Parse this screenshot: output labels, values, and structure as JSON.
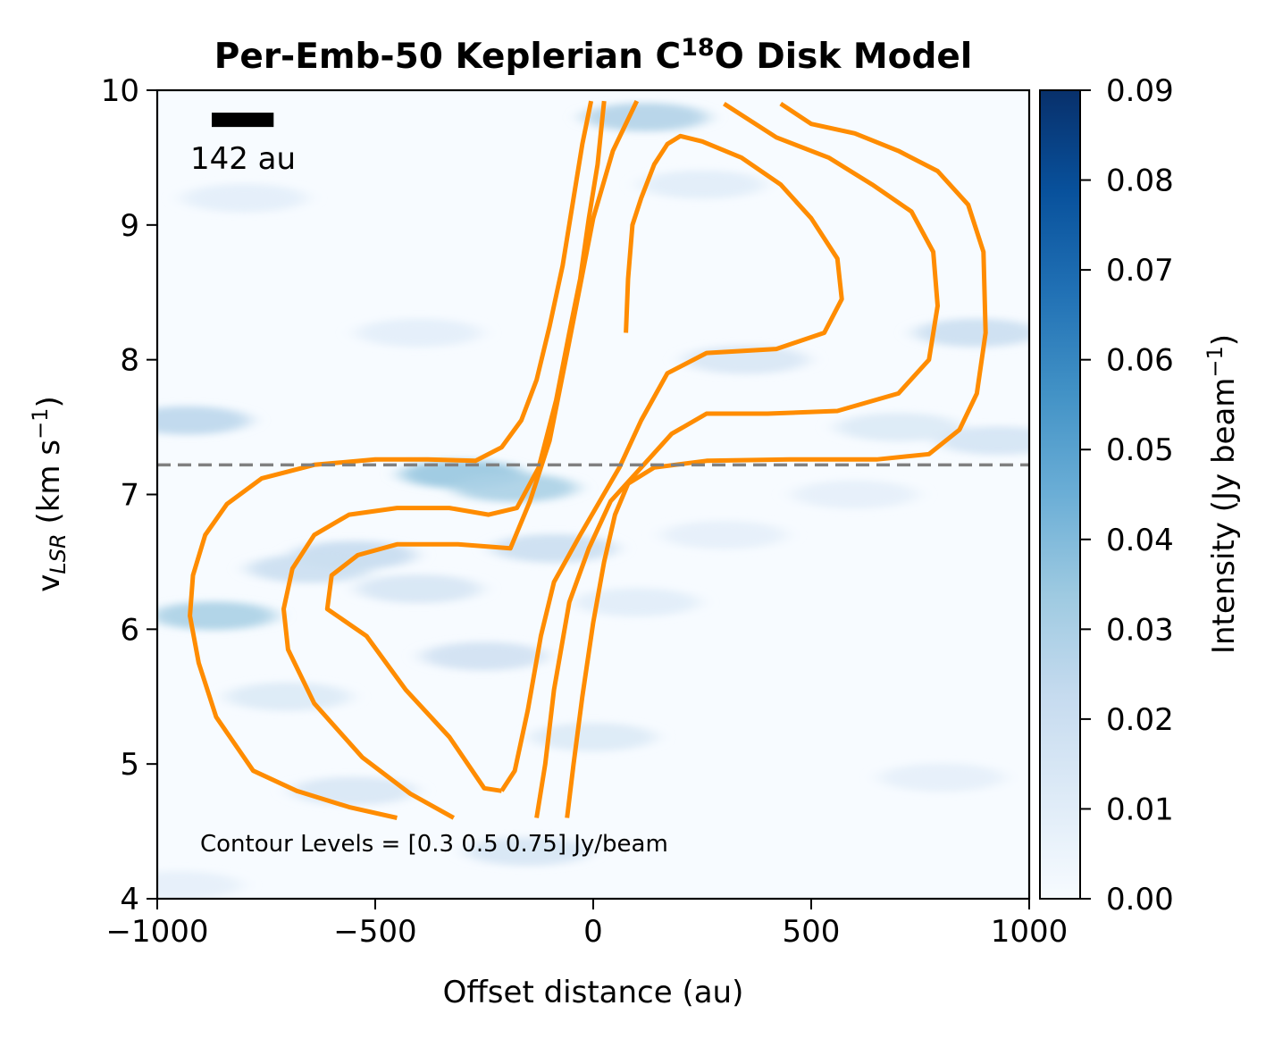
{
  "chart_data": {
    "type": "heatmap",
    "title": {
      "prefix": "Per-Emb-50 Keplerian C",
      "superscript": "18",
      "suffix": "O Disk Model"
    },
    "xlabel": "Offset distance (au)",
    "ylabel": {
      "main": "v",
      "subscript": "LSR",
      "units_open": " (km s",
      "units_sup": "−1",
      "units_close": ")"
    },
    "xlim": [
      -1000,
      1000
    ],
    "ylim": [
      4,
      10
    ],
    "x_ticks": [
      -1000,
      -500,
      0,
      500,
      1000
    ],
    "x_tick_labels": [
      "−1000",
      "−500",
      "0",
      "500",
      "1000"
    ],
    "y_ticks": [
      4,
      5,
      6,
      7,
      8,
      9,
      10
    ],
    "y_tick_labels": [
      "4",
      "5",
      "6",
      "7",
      "8",
      "9",
      "10"
    ],
    "colorbar": {
      "label_main": "Intensity (Jy beam",
      "label_sup": "−1",
      "label_close": ")",
      "range": [
        0,
        0.09
      ],
      "ticks": [
        0,
        0.01,
        0.02,
        0.03,
        0.04,
        0.05,
        0.06,
        0.07,
        0.08,
        0.09
      ],
      "tick_labels": [
        "0.00",
        "0.01",
        "0.02",
        "0.03",
        "0.04",
        "0.05",
        "0.06",
        "0.07",
        "0.08",
        "0.09"
      ],
      "colormap": [
        "#f7fbff",
        "#deebf7",
        "#c6dbef",
        "#9ecae1",
        "#6baed6",
        "#4292c6",
        "#2171b5",
        "#08519c",
        "#08306b"
      ]
    },
    "systemic_velocity": 7.22,
    "systemic_line_color": "#808080",
    "contour_color": "#ff8c00",
    "contour_levels_text": "Contour Levels = [0.3  0.5  0.75] Jy/beam",
    "scale_bar": {
      "label": "142 au",
      "x_range_au": [
        -875,
        -733
      ],
      "velocity": 9.78
    },
    "emission_peaks": [
      {
        "x": -300,
        "v": 7.15,
        "intensity": 0.035
      },
      {
        "x": -180,
        "v": 7.05,
        "intensity": 0.03
      },
      {
        "x": -870,
        "v": 6.1,
        "intensity": 0.03
      },
      {
        "x": -930,
        "v": 7.55,
        "intensity": 0.025
      },
      {
        "x": -550,
        "v": 6.55,
        "intensity": 0.022
      },
      {
        "x": -650,
        "v": 6.45,
        "intensity": 0.02
      },
      {
        "x": 120,
        "v": 9.8,
        "intensity": 0.028
      },
      {
        "x": -90,
        "v": 6.6,
        "intensity": 0.02
      },
      {
        "x": -250,
        "v": 5.8,
        "intensity": 0.018
      },
      {
        "x": -400,
        "v": 6.3,
        "intensity": 0.015
      },
      {
        "x": 350,
        "v": 8.0,
        "intensity": 0.014
      },
      {
        "x": 880,
        "v": 8.2,
        "intensity": 0.02
      },
      {
        "x": 930,
        "v": 7.4,
        "intensity": 0.016
      },
      {
        "x": 700,
        "v": 7.5,
        "intensity": 0.012
      },
      {
        "x": 600,
        "v": 7.0,
        "intensity": 0.008
      },
      {
        "x": -150,
        "v": 4.35,
        "intensity": 0.015
      },
      {
        "x": -550,
        "v": 4.8,
        "intensity": 0.014
      },
      {
        "x": -800,
        "v": 9.2,
        "intensity": 0.009
      },
      {
        "x": 250,
        "v": 9.3,
        "intensity": 0.01
      },
      {
        "x": -400,
        "v": 8.2,
        "intensity": 0.009
      },
      {
        "x": 100,
        "v": 6.2,
        "intensity": 0.01
      },
      {
        "x": 800,
        "v": 4.9,
        "intensity": 0.008
      },
      {
        "x": 0,
        "v": 5.2,
        "intensity": 0.012
      },
      {
        "x": -700,
        "v": 5.5,
        "intensity": 0.012
      },
      {
        "x": 300,
        "v": 6.7,
        "intensity": 0.008
      },
      {
        "x": -950,
        "v": 4.1,
        "intensity": 0.008
      }
    ],
    "contours": [
      {
        "level": 0.3,
        "negative_branch": [
          [
            -450,
            4.6
          ],
          [
            -560,
            4.68
          ],
          [
            -680,
            4.8
          ],
          [
            -780,
            4.95
          ],
          [
            -865,
            5.35
          ],
          [
            -905,
            5.75
          ],
          [
            -925,
            6.1
          ],
          [
            -918,
            6.4
          ],
          [
            -890,
            6.7
          ],
          [
            -840,
            6.93
          ],
          [
            -760,
            7.12
          ],
          [
            -640,
            7.22
          ],
          [
            -500,
            7.26
          ],
          [
            -380,
            7.26
          ],
          [
            -270,
            7.25
          ],
          [
            -210,
            7.35
          ],
          [
            -165,
            7.55
          ],
          [
            -130,
            7.85
          ],
          [
            -100,
            8.25
          ],
          [
            -70,
            8.7
          ],
          [
            -45,
            9.2
          ],
          [
            -25,
            9.6
          ],
          [
            -5,
            9.92
          ]
        ],
        "positive_branch": [
          [
            -60,
            4.6
          ],
          [
            -45,
            5.0
          ],
          [
            -25,
            5.5
          ],
          [
            0,
            6.05
          ],
          [
            25,
            6.5
          ],
          [
            50,
            6.85
          ],
          [
            80,
            7.08
          ],
          [
            140,
            7.2
          ],
          [
            260,
            7.25
          ],
          [
            450,
            7.26
          ],
          [
            650,
            7.26
          ],
          [
            770,
            7.3
          ],
          [
            840,
            7.48
          ],
          [
            880,
            7.75
          ],
          [
            900,
            8.2
          ],
          [
            895,
            8.8
          ],
          [
            860,
            9.15
          ],
          [
            790,
            9.4
          ],
          [
            700,
            9.55
          ],
          [
            600,
            9.68
          ],
          [
            500,
            9.75
          ],
          [
            430,
            9.9
          ]
        ]
      },
      {
        "level": 0.5,
        "negative_branch": [
          [
            -320,
            4.6
          ],
          [
            -420,
            4.78
          ],
          [
            -530,
            5.05
          ],
          [
            -640,
            5.45
          ],
          [
            -700,
            5.85
          ],
          [
            -710,
            6.15
          ],
          [
            -690,
            6.45
          ],
          [
            -640,
            6.7
          ],
          [
            -560,
            6.85
          ],
          [
            -450,
            6.9
          ],
          [
            -330,
            6.9
          ],
          [
            -240,
            6.85
          ],
          [
            -175,
            6.9
          ],
          [
            -125,
            7.2
          ],
          [
            -85,
            7.7
          ],
          [
            -55,
            8.2
          ],
          [
            -30,
            8.6
          ],
          [
            -10,
            9.05
          ],
          [
            10,
            9.45
          ],
          [
            25,
            9.92
          ]
        ],
        "positive_branch": [
          [
            -130,
            4.6
          ],
          [
            -110,
            5.0
          ],
          [
            -90,
            5.55
          ],
          [
            -55,
            6.2
          ],
          [
            -10,
            6.6
          ],
          [
            40,
            6.95
          ],
          [
            110,
            7.2
          ],
          [
            180,
            7.45
          ],
          [
            260,
            7.6
          ],
          [
            400,
            7.6
          ],
          [
            560,
            7.62
          ],
          [
            700,
            7.75
          ],
          [
            770,
            8.0
          ],
          [
            790,
            8.4
          ],
          [
            780,
            8.8
          ],
          [
            730,
            9.1
          ],
          [
            640,
            9.3
          ],
          [
            540,
            9.5
          ],
          [
            420,
            9.65
          ],
          [
            300,
            9.9
          ]
        ]
      },
      {
        "level": 0.75,
        "negative_branch": [
          [
            -210,
            4.8
          ],
          [
            -250,
            4.82
          ],
          [
            -330,
            5.2
          ],
          [
            -430,
            5.55
          ],
          [
            -520,
            5.95
          ],
          [
            -610,
            6.15
          ],
          [
            -600,
            6.4
          ],
          [
            -540,
            6.55
          ],
          [
            -450,
            6.63
          ],
          [
            -310,
            6.63
          ],
          [
            -190,
            6.6
          ],
          [
            -145,
            6.95
          ],
          [
            -100,
            7.4
          ],
          [
            -60,
            8.05
          ],
          [
            -30,
            8.55
          ],
          [
            0,
            9.05
          ],
          [
            45,
            9.55
          ],
          [
            100,
            9.92
          ]
        ],
        "positive_branch": [
          [
            -210,
            4.8
          ],
          [
            -180,
            4.95
          ],
          [
            -150,
            5.4
          ],
          [
            -120,
            5.95
          ],
          [
            -90,
            6.35
          ],
          [
            -30,
            6.7
          ],
          [
            60,
            7.2
          ],
          [
            110,
            7.55
          ],
          [
            170,
            7.9
          ],
          [
            260,
            8.05
          ],
          [
            420,
            8.08
          ],
          [
            530,
            8.2
          ],
          [
            570,
            8.45
          ],
          [
            560,
            8.75
          ],
          [
            500,
            9.05
          ],
          [
            430,
            9.3
          ],
          [
            340,
            9.5
          ],
          [
            250,
            9.62
          ],
          [
            200,
            9.66
          ],
          [
            170,
            9.6
          ],
          [
            140,
            9.45
          ],
          [
            110,
            9.2
          ],
          [
            90,
            9.0
          ],
          [
            80,
            8.6
          ],
          [
            75,
            8.2
          ]
        ]
      }
    ]
  }
}
